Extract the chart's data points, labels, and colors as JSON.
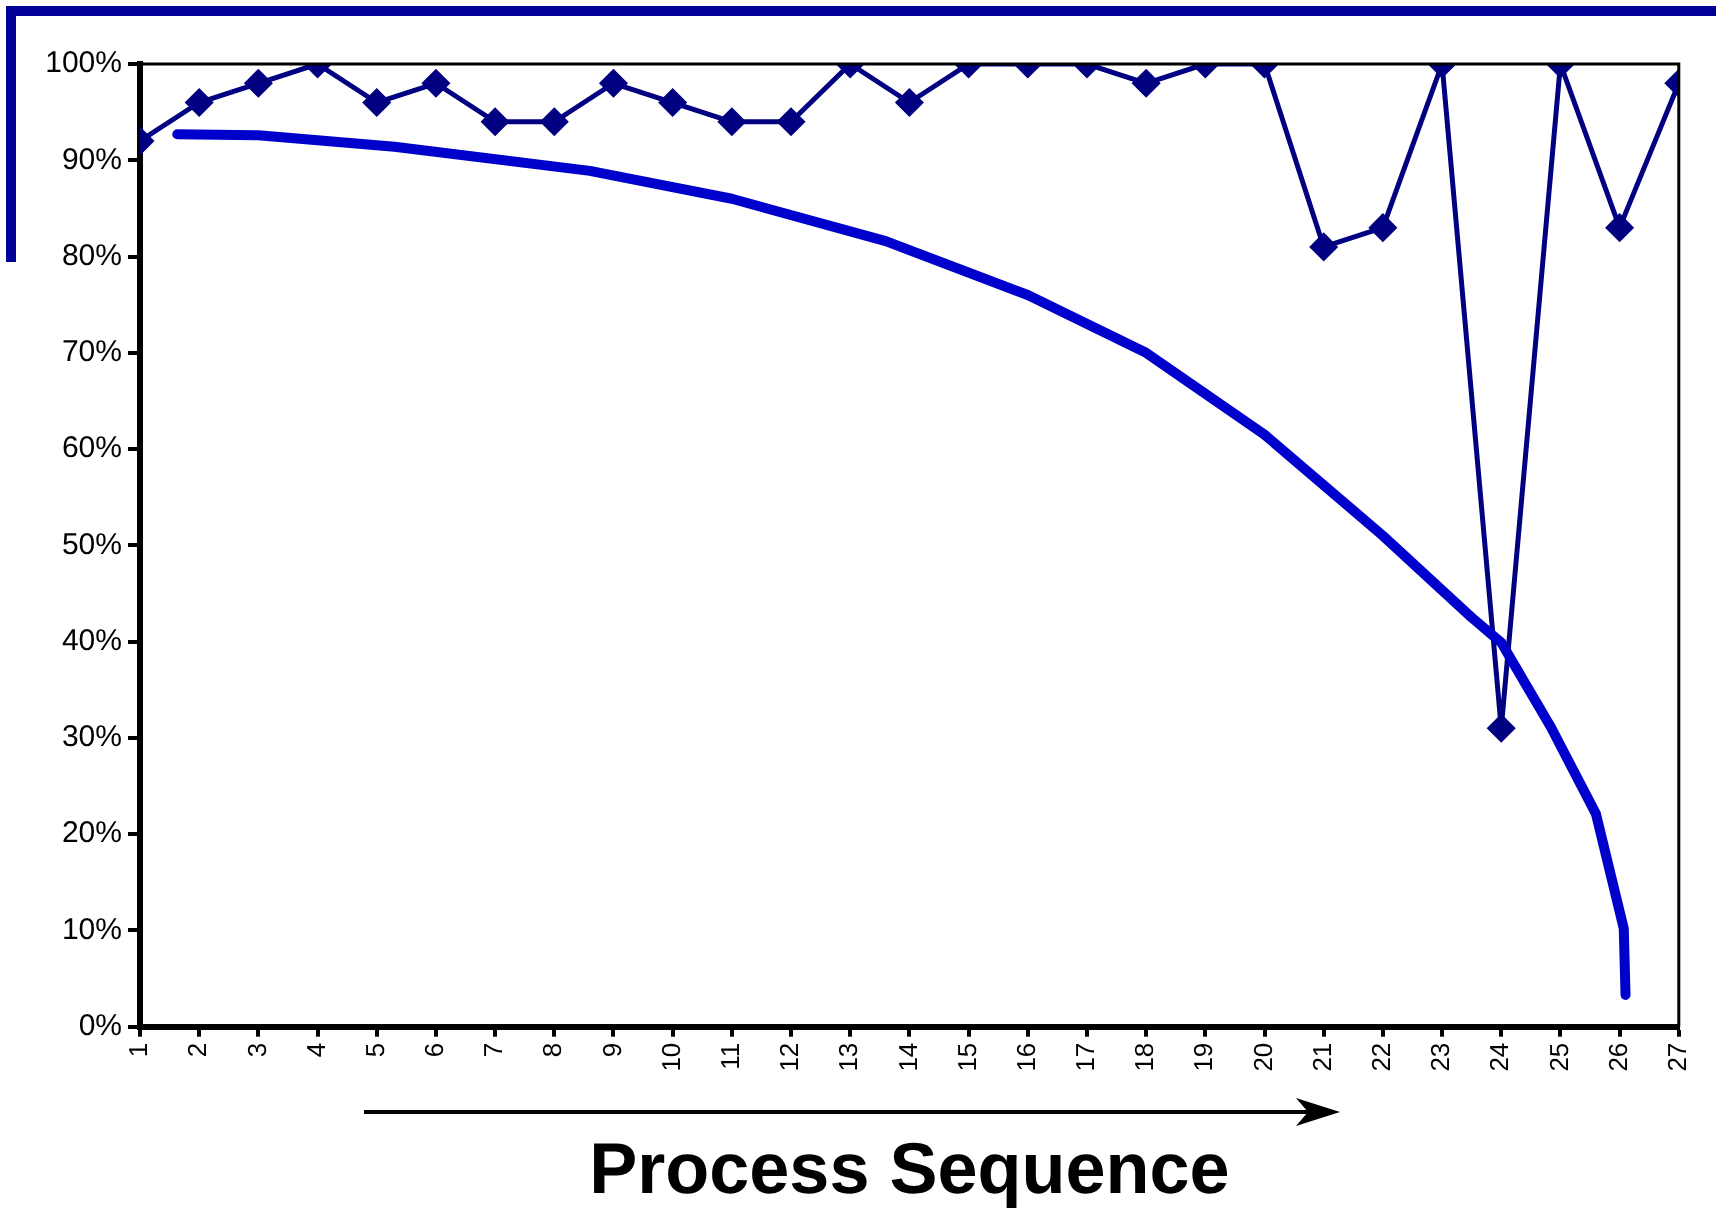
{
  "chart_data": {
    "type": "line",
    "xlabel": "Process Sequence",
    "xlim": [
      1,
      27
    ],
    "xticks": [
      1,
      2,
      3,
      4,
      5,
      6,
      7,
      8,
      9,
      10,
      11,
      12,
      13,
      14,
      15,
      16,
      17,
      18,
      19,
      20,
      21,
      22,
      23,
      24,
      25,
      26,
      27
    ],
    "ylim": [
      0,
      100
    ],
    "yticks": [
      {
        "value": 0,
        "label": "0%"
      },
      {
        "value": 10,
        "label": "10%"
      },
      {
        "value": 20,
        "label": "20%"
      },
      {
        "value": 30,
        "label": "30%"
      },
      {
        "value": 40,
        "label": "40%"
      },
      {
        "value": 50,
        "label": "50%"
      },
      {
        "value": 60,
        "label": "60%"
      },
      {
        "value": 70,
        "label": "70%"
      },
      {
        "value": 80,
        "label": "80%"
      },
      {
        "value": 90,
        "label": "90%"
      },
      {
        "value": 100,
        "label": "100%"
      }
    ],
    "grid": false,
    "legend": false,
    "series": [
      {
        "color": "#000080",
        "marker": "diamond",
        "x": [
          1,
          2,
          3,
          4,
          5,
          6,
          7,
          8,
          9,
          10,
          11,
          12,
          13,
          14,
          15,
          16,
          17,
          18,
          19,
          20,
          21,
          22,
          23,
          24,
          25,
          26,
          27
        ],
        "values": [
          92,
          96,
          98,
          100,
          96,
          98,
          94,
          94,
          98,
          96,
          94,
          94,
          100,
          96,
          100,
          100,
          100,
          98,
          100,
          100,
          81,
          83,
          100,
          31,
          100,
          83,
          98
        ]
      },
      {
        "color": "#0000cc",
        "marker": "none",
        "x": [
          1.63,
          3,
          5.3,
          8.6,
          11,
          13.6,
          16,
          18,
          20,
          22,
          23.5,
          24,
          24.84,
          25.6,
          26.07,
          26.1
        ],
        "values": [
          92.7,
          92.6,
          91.4,
          88.9,
          86,
          81.6,
          76,
          70,
          61.5,
          51,
          42.5,
          39.9,
          31.1,
          22.1,
          10.2,
          3.3
        ]
      }
    ]
  }
}
